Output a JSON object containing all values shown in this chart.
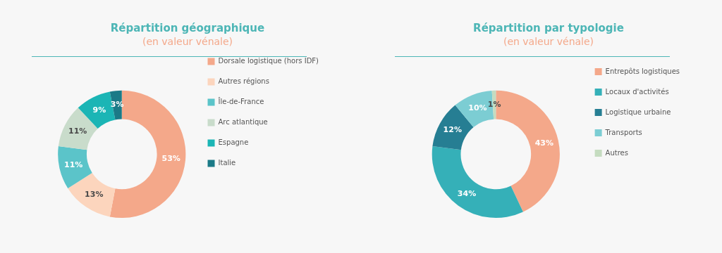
{
  "chart_data": [
    {
      "type": "donut",
      "title": "Répartition géographique",
      "subtitle": "(en valeur vénale)",
      "legend": "right",
      "categories": [
        "Dorsale logistique (hors IDF)",
        "Autres régions",
        "Île-de-France",
        "Arc atlantique",
        "Espagne",
        "Italie"
      ],
      "values": [
        53,
        13,
        11,
        11,
        9,
        3
      ],
      "value_labels": [
        "53%",
        "13%",
        "11%",
        "11%",
        "9%",
        "3%"
      ],
      "colors": [
        "#f4a88a",
        "#fcd5bd",
        "#5bc4c9",
        "#c9dccb",
        "#1bb5b5",
        "#1b7a87"
      ]
    },
    {
      "type": "donut",
      "title": "Répartition par typologie",
      "subtitle": "(en valeur vénale)",
      "legend": "right",
      "categories": [
        "Entrepôts logistiques",
        "Locaux d'activités",
        "Logistique urbaine",
        "Transports",
        "Autres"
      ],
      "values": [
        43,
        34,
        12,
        10,
        1
      ],
      "value_labels": [
        "43%",
        "34%",
        "12%",
        "10%",
        "1%"
      ],
      "colors": [
        "#f4a88a",
        "#35b0b8",
        "#267e93",
        "#7ccdd3",
        "#c5dcc0"
      ]
    }
  ]
}
